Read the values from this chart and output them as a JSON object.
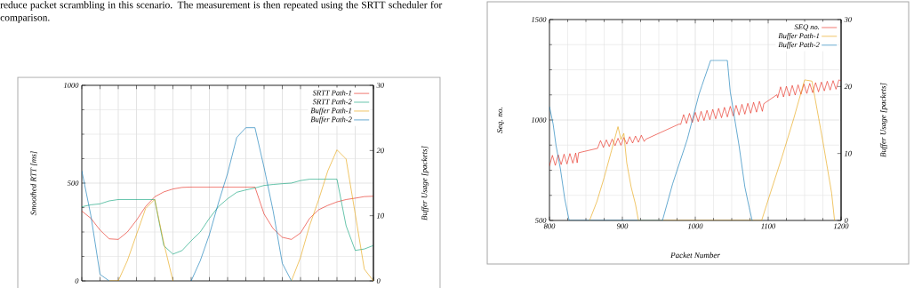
{
  "chart_data": [
    {
      "type": "line",
      "annotations": [
        "reduce packet scrambling in this scenario. The measurement is then repeated using the SRTT scheduler for comparison."
      ],
      "ylabel": "Smoothed RTT [ms]",
      "y2label": "Buffer Usage [packets]",
      "categories": [
        null,
        null,
        null,
        null,
        null,
        null,
        null,
        null,
        null,
        null,
        null,
        null,
        null,
        null,
        null,
        null,
        null,
        null,
        null,
        null,
        null,
        null,
        null,
        null,
        null,
        null,
        null,
        null,
        null,
        null,
        null,
        null,
        null
      ],
      "ylim": [
        0,
        1000
      ],
      "yticks": [
        0,
        500,
        1000
      ],
      "y2lim": [
        0,
        30
      ],
      "y2ticks": [
        0,
        10,
        20,
        30
      ],
      "grid": true,
      "legend": "top right",
      "series": [
        {
          "name": "SRTT Path-1",
          "color": "#e51e10",
          "values": [
            357,
            320,
            260,
            215,
            212,
            250,
            310,
            380,
            430,
            455,
            470,
            478,
            480,
            480,
            480,
            480,
            480,
            480,
            480,
            480,
            342,
            267,
            223,
            212,
            245,
            320,
            364,
            386,
            404,
            416,
            423,
            431,
            433
          ]
        },
        {
          "name": "SRTT Path-2",
          "color": "#009e73",
          "values": [
            379,
            389,
            394,
            409,
            416,
            416,
            416,
            416,
            416,
            180,
            137,
            155,
            205,
            250,
            320,
            380,
            420,
            453,
            465,
            475,
            488,
            493,
            497,
            500,
            513,
            520,
            520,
            520,
            520,
            282,
            156,
            163,
            181
          ]
        },
        {
          "name": "Buffer Path-1",
          "color": "#e69f00",
          "axis": "y2",
          "values": [
            null,
            null,
            null,
            0,
            0,
            3.1,
            7.1,
            11.1,
            12.5,
            5.8,
            0,
            null,
            null,
            null,
            null,
            null,
            null,
            null,
            null,
            null,
            null,
            null,
            null,
            0,
            3.6,
            8.5,
            12.5,
            16.9,
            20.1,
            18.7,
            10.3,
            1.8,
            0
          ]
        },
        {
          "name": "Buffer Path-2",
          "color": "#0072b2",
          "axis": "y2",
          "values": [
            16.9,
            10,
            1,
            0,
            null,
            null,
            null,
            null,
            null,
            null,
            null,
            null,
            0,
            3.1,
            7.1,
            12,
            16.5,
            22,
            23.5,
            23.5,
            17.4,
            10.7,
            2.7,
            0,
            null,
            null,
            null,
            null,
            null,
            null,
            null,
            null,
            null
          ]
        }
      ]
    },
    {
      "type": "line",
      "xlabel": "Packet Number",
      "ylabel": "Seq. no.",
      "y2label": "Buffer Usage [packets]",
      "xlim": [
        800,
        1200
      ],
      "xticks": [
        800,
        900,
        1000,
        1100,
        1200
      ],
      "ylim": [
        500,
        1500
      ],
      "yticks": [
        500,
        1000,
        1500
      ],
      "y2lim": [
        0,
        30
      ],
      "y2ticks": [
        0,
        10,
        20,
        30
      ],
      "grid": true,
      "legend": "top right",
      "series": [
        {
          "name": "SEQ no.",
          "color": "#e51e10",
          "x": [
            800,
            804,
            808,
            812,
            816,
            820,
            824,
            828,
            832,
            836,
            838,
            840,
            866,
            870,
            874,
            878,
            882,
            886,
            890,
            894,
            898,
            902,
            906,
            910,
            914,
            918,
            922,
            926,
            930,
            932,
            978,
            980,
            984,
            988,
            992,
            996,
            1000,
            1004,
            1008,
            1012,
            1016,
            1020,
            1024,
            1028,
            1032,
            1036,
            1040,
            1044,
            1048,
            1052,
            1056,
            1060,
            1064,
            1068,
            1072,
            1076,
            1080,
            1084,
            1088,
            1092,
            1094,
            1112,
            1113,
            1117,
            1121,
            1125,
            1129,
            1133,
            1137,
            1141,
            1145,
            1149,
            1153,
            1157,
            1161,
            1165,
            1169,
            1173,
            1177,
            1181,
            1185,
            1189,
            1193,
            1197,
            1200
          ],
          "values": [
            771,
            824,
            774,
            827,
            778,
            830,
            781,
            833,
            785,
            836,
            787,
            837,
            859,
            898,
            863,
            901,
            868,
            905,
            872,
            909,
            874,
            913,
            880,
            917,
            885,
            920,
            889,
            924,
            893,
            904,
            980,
            978,
            1027,
            983,
            1033,
            987,
            1038,
            992,
            1043,
            997,
            1048,
            1001,
            1053,
            1006,
            1058,
            1011,
            1063,
            1015,
            1068,
            1020,
            1073,
            1025,
            1078,
            1029,
            1083,
            1034,
            1088,
            1039,
            1093,
            1043,
            1081,
            1126,
            1111,
            1165,
            1115,
            1168,
            1119,
            1172,
            1124,
            1175,
            1128,
            1179,
            1132,
            1182,
            1136,
            1186,
            1140,
            1189,
            1145,
            1193,
            1149,
            1196,
            1153,
            1200,
            1195
          ]
        },
        {
          "name": "Buffer Path-1",
          "color": "#e69f00",
          "axis": "y2",
          "x": [
            855,
            865,
            875,
            885,
            894,
            898,
            902,
            906,
            912,
            918,
            922,
            1091,
            1103,
            1119,
            1135,
            1150,
            1160,
            1164,
            1170,
            1176,
            1180,
            1187,
            1191
          ],
          "values": [
            0,
            2.8,
            6.4,
            10.4,
            14,
            12.1,
            13,
            8.6,
            5,
            2.4,
            0,
            0,
            4.1,
            9.5,
            15.2,
            21,
            20.8,
            18.4,
            14.8,
            11.2,
            8.6,
            4.1,
            0
          ]
        },
        {
          "name": "Buffer Path-2",
          "color": "#0072b2",
          "axis": "y2",
          "x": [
            800,
            805,
            809,
            815,
            821,
            827,
            955,
            969,
            989,
            1005,
            1009,
            1021,
            1044,
            1048,
            1054,
            1060,
            1068,
            1074,
            1078
          ],
          "values": [
            17,
            14.4,
            11.2,
            7.7,
            3.2,
            0,
            0,
            5.5,
            12.1,
            18.8,
            20.1,
            23.9,
            23.9,
            19.2,
            15.2,
            11.2,
            5,
            1.9,
            0
          ]
        }
      ]
    }
  ]
}
